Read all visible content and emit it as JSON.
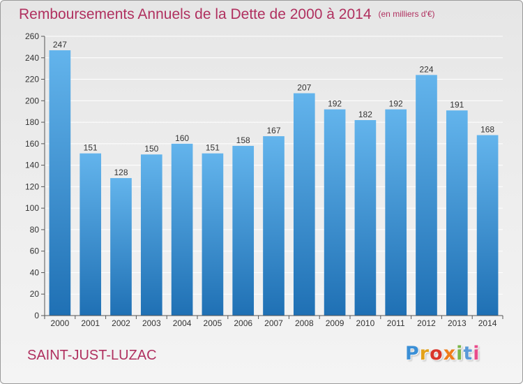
{
  "header": {
    "title": "Remboursements Annuels de la Dette de 2000 à 2014",
    "unit": "(en milliers d'€)"
  },
  "footer": {
    "commune": "SAINT-JUST-LUZAC",
    "logo_text": "Proxiti"
  },
  "colors": {
    "title": "#b0305f",
    "bar_top": "#63b4ec",
    "bar_bottom": "#1f70b4",
    "grid": "#ffffff",
    "logo": [
      "#3a8fd6",
      "#e3a21a",
      "#d9352b",
      "#ef7d1a",
      "#7ab648",
      "#5a9ad8",
      "#e84c8b"
    ]
  },
  "chart_data": {
    "type": "bar",
    "title": "Remboursements Annuels de la Dette de 2000 à 2014",
    "xlabel": "",
    "ylabel": "",
    "categories": [
      "2000",
      "2001",
      "2002",
      "2003",
      "2004",
      "2005",
      "2006",
      "2007",
      "2008",
      "2009",
      "2010",
      "2011",
      "2012",
      "2013",
      "2014"
    ],
    "values": [
      247,
      151,
      128,
      150,
      160,
      151,
      158,
      167,
      207,
      192,
      182,
      192,
      224,
      191,
      168
    ],
    "ylim": [
      0,
      260
    ],
    "yticks": [
      0,
      20,
      40,
      60,
      80,
      100,
      120,
      140,
      160,
      180,
      200,
      220,
      240,
      260
    ],
    "grid": true,
    "data_labels": true
  }
}
